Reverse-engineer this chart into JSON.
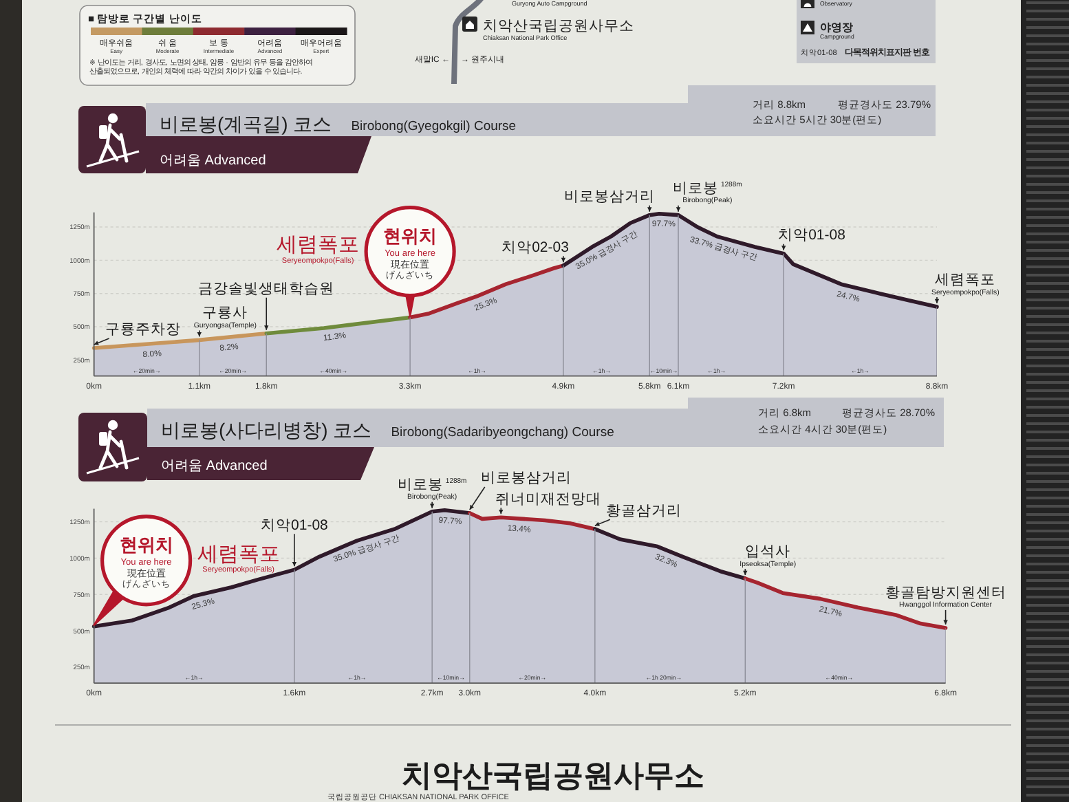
{
  "chart_data": [
    {
      "type": "other",
      "title": "■ 탐방로 구간별 난이도",
      "categories": [
        "매우쉬움\nEasy",
        "쉬 움\nModerate",
        "보 통\nIntermediate",
        "어려움\nAdvanced",
        "매우어려움\nExpert"
      ],
      "annotations": [
        "※ 난이도는 거리, 경사도, 노면의 상태, 암릉 · 암반의 유무 등을 감안하여 산출되었으므로, 개인의 체력에 따라 약간의 차이가 있을 수 있습니다."
      ]
    },
    {
      "type": "other",
      "annotations": [
        "Guryong Auto Campground",
        "치악산국립공원사무소",
        "Chiaksan National Park Office",
        "새말IC ←",
        "→ 원주시내"
      ]
    },
    {
      "type": "other",
      "annotations": [
        "Observatory",
        "야영장",
        "Campground",
        "치악01-08",
        "다목적위치표지판 번호"
      ]
    },
    {
      "type": "area",
      "title": "비로봉(계곡길) 코스",
      "subtitle": "Birobong(Gyegokgil) Course",
      "xlim": [
        0,
        8.8
      ],
      "ylim": [
        130,
        1360
      ],
      "xticks": [
        {
          "value": 0,
          "label": "0km"
        },
        {
          "value": 1.1,
          "label": "1.1km"
        },
        {
          "value": 1.8,
          "label": "1.8km"
        },
        {
          "value": 3.3,
          "label": "3.3km"
        },
        {
          "value": 4.9,
          "label": "4.9km"
        },
        {
          "value": 5.8,
          "label": "5.8km"
        },
        {
          "value": 6.1,
          "label": "6.1km"
        },
        {
          "value": 7.2,
          "label": "7.2km"
        },
        {
          "value": 8.8,
          "label": "8.8km"
        }
      ],
      "yticks": [
        {
          "value": 250,
          "label": "250m"
        },
        {
          "value": 500,
          "label": "500m"
        },
        {
          "value": 750,
          "label": "750m"
        },
        {
          "value": 1000,
          "label": "1000m"
        },
        {
          "value": 1250,
          "label": "1250m"
        }
      ],
      "grid": true,
      "series": [
        {
          "color": "#c8965c",
          "x": [
            0,
            1.1,
            1.8
          ],
          "values": [
            340,
            400,
            450
          ]
        },
        {
          "color": "#6f8b3c",
          "x": [
            1.8,
            2.4,
            3.3
          ],
          "values": [
            450,
            490,
            570
          ]
        },
        {
          "color": "#a62530",
          "x": [
            3.3,
            3.5,
            3.8,
            4.0,
            4.3,
            4.6,
            4.8,
            4.9
          ],
          "values": [
            570,
            600,
            680,
            730,
            820,
            890,
            940,
            960
          ]
        },
        {
          "color": "#2f1a2a",
          "x": [
            4.9,
            5.2,
            5.4,
            5.6,
            5.8,
            5.9,
            6.1,
            6.3,
            6.5,
            6.9,
            7.2,
            7.3,
            7.8,
            8.2,
            8.5,
            8.8
          ],
          "values": [
            960,
            1100,
            1180,
            1280,
            1340,
            1350,
            1340,
            1250,
            1180,
            1100,
            1050,
            970,
            820,
            750,
            700,
            650
          ]
        }
      ],
      "annotations": [
        "어려움 Advanced",
        "거리 8.8km",
        "평균경사도 23.79%",
        "소요시간 5시간 30분(편도)",
        "세렴폭포\nSeryeompokpo(Falls)",
        "現在位置",
        "げんざいち",
        {
          "text": "현위치\nYou are here",
          "x": 3.3,
          "y": 570
        },
        {
          "text": "구룡주차장",
          "x": 0,
          "y": 340
        },
        {
          "text": "구룡사\nGuryongsa(Temple)",
          "x": 1.1,
          "y": 400
        },
        {
          "text": "금강솔빛생태학습원",
          "x": 1.8,
          "y": 450
        },
        {
          "text": "치악02-03",
          "x": 4.9,
          "y": 960
        },
        {
          "text": "비로봉삼거리",
          "x": 5.8,
          "y": 1340
        },
        {
          "text": "비로봉\n1288m\nBirobong(Peak)",
          "x": 6.1,
          "y": 1340
        },
        {
          "text": "치악01-08",
          "x": 7.2,
          "y": 1050
        },
        {
          "text": "세렴폭포\nSeryeompokpo(Falls)",
          "x": 8.8,
          "y": 650
        },
        {
          "text": "8.0%",
          "x": 0.6,
          "y": 370
        },
        {
          "text": "8.2%",
          "x": 1.4,
          "y": 420
        },
        {
          "text": "11.3%",
          "x": 2.5,
          "y": 500
        },
        {
          "text": "25.3%",
          "x": 4.05,
          "y": 740
        },
        {
          "text": "35.0% 급경사 구간",
          "x": 5.3,
          "y": 1140
        },
        {
          "text": "97.7%",
          "x": 5.95,
          "y": 1350
        },
        {
          "text": "33.7% 급경사 구간",
          "x": 6.6,
          "y": 1160
        },
        {
          "text": "24.7%",
          "x": 7.9,
          "y": 800
        },
        {
          "text": "←20min→",
          "x": 0.55,
          "y": 130
        },
        {
          "text": "←20min→",
          "x": 1.45,
          "y": 130
        },
        {
          "text": "←40min→",
          "x": 2.5,
          "y": 130
        },
        {
          "text": "←1h→",
          "x": 4.0,
          "y": 130
        },
        {
          "text": "←1h→",
          "x": 5.3,
          "y": 130
        },
        {
          "text": "←10min→",
          "x": 5.95,
          "y": 130
        },
        {
          "text": "←1h→",
          "x": 6.5,
          "y": 130
        },
        {
          "text": "←1h→",
          "x": 8.0,
          "y": 130
        }
      ]
    },
    {
      "type": "area",
      "title": "비로봉(사다리병창) 코스",
      "subtitle": "Birobong(Sadaribyeongchang) Course",
      "xlim": [
        0,
        6.8
      ],
      "ylim": [
        140,
        1340
      ],
      "xticks": [
        {
          "value": 0,
          "label": "0km"
        },
        {
          "value": 1.6,
          "label": "1.6km"
        },
        {
          "value": 2.7,
          "label": "2.7km"
        },
        {
          "value": 3.0,
          "label": "3.0km"
        },
        {
          "value": 4.0,
          "label": "4.0km"
        },
        {
          "value": 5.2,
          "label": "5.2km"
        },
        {
          "value": 6.8,
          "label": "6.8km"
        }
      ],
      "yticks": [
        {
          "value": 250,
          "label": "250m"
        },
        {
          "value": 500,
          "label": "500m"
        },
        {
          "value": 750,
          "label": "750m"
        },
        {
          "value": 1000,
          "label": "1000m"
        },
        {
          "value": 1250,
          "label": "1250m"
        }
      ],
      "grid": true,
      "series": [
        {
          "color": "#2f1a2a",
          "x": [
            0,
            0.3,
            0.6,
            0.8,
            1.1,
            1.3,
            1.6,
            1.8,
            2.1,
            2.4,
            2.6,
            2.7,
            2.8,
            3.0
          ],
          "values": [
            530,
            570,
            660,
            740,
            800,
            850,
            920,
            1010,
            1120,
            1200,
            1280,
            1320,
            1330,
            1310
          ]
        },
        {
          "color": "#a62530",
          "x": [
            3.0,
            3.1,
            3.25,
            3.6,
            3.8,
            4.0
          ],
          "values": [
            1310,
            1270,
            1280,
            1260,
            1240,
            1200
          ]
        },
        {
          "color": "#2f1a2a",
          "x": [
            4.0,
            4.2,
            4.5,
            4.7,
            5.0,
            5.2
          ],
          "values": [
            1200,
            1130,
            1080,
            1010,
            910,
            860
          ]
        },
        {
          "color": "#a62530",
          "x": [
            5.2,
            5.3,
            5.5,
            5.8,
            6.1,
            6.4,
            6.6,
            6.8
          ],
          "values": [
            860,
            830,
            760,
            720,
            660,
            610,
            550,
            520
          ]
        }
      ],
      "annotations": [
        "어려움 Advanced",
        "거리 6.8km",
        "평균경사도 28.70%",
        "소요시간 4시간 30분(편도)",
        "세렴폭포\nSeryeompokpo(Falls)",
        "現在位置",
        "げんざいち",
        {
          "text": "현위치\nYou are here",
          "x": 0,
          "y": 530
        },
        {
          "text": "치악01-08",
          "x": 1.6,
          "y": 920
        },
        {
          "text": "비로봉\n1288m\nBirobong(Peak)",
          "x": 2.7,
          "y": 1320
        },
        {
          "text": "비로봉삼거리",
          "x": 3.0,
          "y": 1310
        },
        {
          "text": "쥐너미재전망대",
          "x": 3.25,
          "y": 1280
        },
        {
          "text": "황골삼거리",
          "x": 4.0,
          "y": 1200
        },
        {
          "text": "입석사\nIpseoksa(Temple)",
          "x": 5.2,
          "y": 860
        },
        {
          "text": "황골탐방지원센터\nHwanggol Information Center",
          "x": 6.8,
          "y": 520
        },
        {
          "text": "25.3%",
          "x": 0.85,
          "y": 750
        },
        {
          "text": "35.0% 급경사 구간",
          "x": 2.15,
          "y": 1130
        },
        {
          "text": "97.7%",
          "x": 2.85,
          "y": 1325
        },
        {
          "text": "13.4%",
          "x": 3.4,
          "y": 1270
        },
        {
          "text": "32.3%",
          "x": 4.6,
          "y": 1045
        },
        {
          "text": "21.7%",
          "x": 5.9,
          "y": 700
        },
        {
          "text": "←1h→",
          "x": 0.8,
          "y": 140
        },
        {
          "text": "←1h→",
          "x": 2.1,
          "y": 140
        },
        {
          "text": "←10min→",
          "x": 2.85,
          "y": 140
        },
        {
          "text": "←20min→",
          "x": 3.5,
          "y": 140
        },
        {
          "text": "←1h 20min→",
          "x": 4.55,
          "y": 140
        },
        {
          "text": "←40min→",
          "x": 5.95,
          "y": 140
        }
      ]
    },
    {
      "type": "other",
      "title": "치악산국립공원사무소",
      "subtitle": "국립공원공단 CHIAKSAN NATIONAL PARK OFFICE"
    }
  ]
}
